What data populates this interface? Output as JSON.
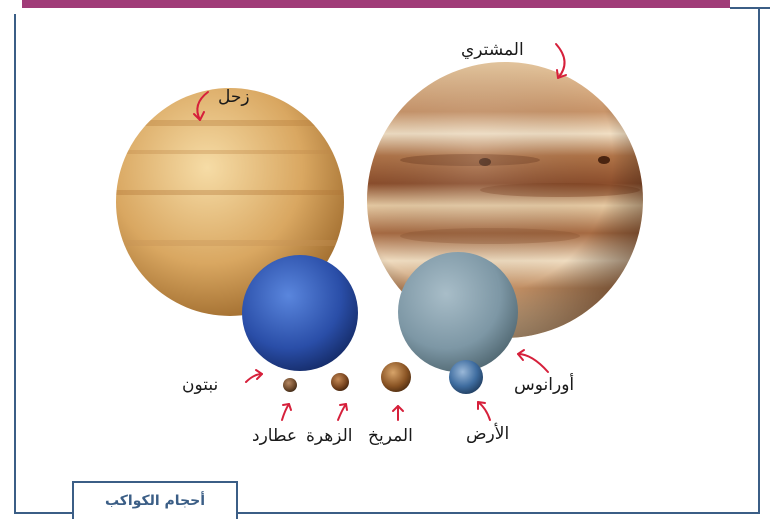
{
  "caption": "أحجام الكواكب",
  "labels": {
    "jupiter": "المشتري",
    "saturn": "زحل",
    "uranus": "أورانوس",
    "neptune": "نبتون",
    "earth": "الأرض",
    "mars": "المريخ",
    "venus": "الزهرة",
    "mercury": "عطارد"
  },
  "colors": {
    "frame": "#3b5e86",
    "top_bar": "#a03c78",
    "arrow": "#d6203b"
  }
}
